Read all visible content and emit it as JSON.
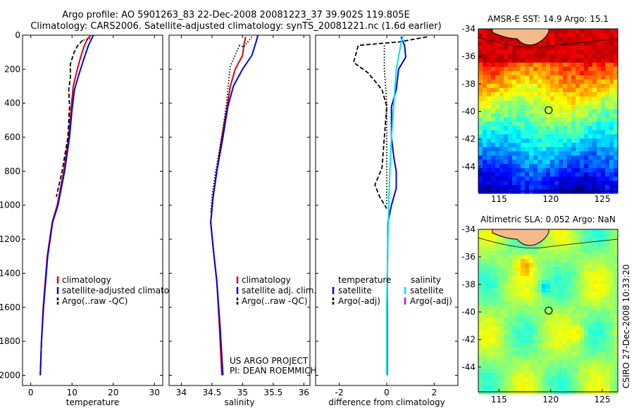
{
  "header": {
    "line1": "Argo profile: AO 5901263_83 22-Dec-2008 20081223_37 39.902S 119.805E",
    "line2": "Climatology: CARS2006. Satellite-adjusted climatology: synTS_20081221.nc (1.6d earlier)"
  },
  "side_label": "CSIRO 27-Dec-2008 10:33:20",
  "annotation": {
    "line1": "US ARGO PROJECT",
    "line2": "PI: DEAN ROEMMICH"
  },
  "colors": {
    "climatology": "#e00000",
    "satellite": "#0000ee",
    "argo": "#000000",
    "sat_salinity": "#00e5e5",
    "argo_adj_sal": "#e000e0",
    "land": "#f5b98a"
  },
  "chart_data": [
    {
      "id": "temp",
      "type": "line",
      "xlabel": "temperature",
      "xlim": [
        -2,
        32
      ],
      "xticks": [
        0,
        10,
        20,
        30
      ],
      "ylim": [
        0,
        2060
      ],
      "yticks": [
        0,
        200,
        400,
        600,
        800,
        1000,
        1200,
        1400,
        1600,
        1800,
        2000
      ],
      "legend": [
        "climatology",
        "satellite-adjusted climatology",
        "Argo(..raw -QC)"
      ],
      "series": [
        {
          "key": "climatology",
          "style": "solid",
          "points": [
            [
              14.6,
              0
            ],
            [
              13.8,
              20
            ],
            [
              13.0,
              60
            ],
            [
              12.2,
              120
            ],
            [
              11.3,
              200
            ],
            [
              10.3,
              300
            ],
            [
              9.8,
              420
            ],
            [
              9.2,
              600
            ],
            [
              8.0,
              800
            ],
            [
              6.4,
              1000
            ],
            [
              5.2,
              1100
            ],
            [
              4.0,
              1300
            ],
            [
              3.0,
              1600
            ],
            [
              2.6,
              1800
            ],
            [
              2.3,
              2000
            ]
          ]
        },
        {
          "key": "satellite",
          "style": "solid",
          "points": [
            [
              15.2,
              0
            ],
            [
              14.8,
              20
            ],
            [
              14.0,
              60
            ],
            [
              13.0,
              130
            ],
            [
              11.8,
              220
            ],
            [
              10.6,
              320
            ],
            [
              10.0,
              440
            ],
            [
              9.4,
              600
            ],
            [
              8.2,
              800
            ],
            [
              6.6,
              1000
            ],
            [
              5.3,
              1100
            ],
            [
              4.1,
              1300
            ],
            [
              3.1,
              1600
            ],
            [
              2.6,
              1800
            ],
            [
              2.3,
              2000
            ]
          ]
        },
        {
          "key": "argo",
          "style": "dash",
          "points": [
            [
              12.6,
              30
            ],
            [
              11.4,
              60
            ],
            [
              10.5,
              100
            ],
            [
              9.6,
              170
            ],
            [
              9.6,
              250
            ],
            [
              9.2,
              320
            ],
            [
              9.4,
              420
            ],
            [
              9.0,
              600
            ],
            [
              7.6,
              800
            ],
            [
              6.2,
              950
            ]
          ]
        },
        {
          "key": "argo",
          "style": "dot",
          "points": [
            [
              14.4,
              20
            ],
            [
              12.6,
              30
            ]
          ]
        }
      ]
    },
    {
      "id": "sal",
      "type": "line",
      "xlabel": "salinity",
      "xlim": [
        33.8,
        36.1
      ],
      "xticks": [
        34,
        34.5,
        35,
        35.5,
        36
      ],
      "ylim": [
        0,
        2060
      ],
      "legend": [
        "climatology",
        "satellite adj. clim.",
        "Argo(..raw -QC)"
      ],
      "series": [
        {
          "key": "climatology",
          "style": "solid",
          "points": [
            [
              35.05,
              10
            ],
            [
              35.02,
              60
            ],
            [
              35.0,
              120
            ],
            [
              34.88,
              200
            ],
            [
              34.8,
              300
            ],
            [
              34.74,
              440
            ],
            [
              34.66,
              600
            ],
            [
              34.58,
              800
            ],
            [
              34.52,
              950
            ],
            [
              34.48,
              1100
            ],
            [
              34.52,
              1250
            ],
            [
              34.58,
              1450
            ],
            [
              34.62,
              1700
            ],
            [
              34.66,
              2000
            ]
          ]
        },
        {
          "key": "satellite",
          "style": "solid",
          "points": [
            [
              35.25,
              0
            ],
            [
              35.22,
              40
            ],
            [
              35.15,
              120
            ],
            [
              35.0,
              200
            ],
            [
              34.85,
              300
            ],
            [
              34.76,
              420
            ],
            [
              34.68,
              600
            ],
            [
              34.58,
              800
            ],
            [
              34.52,
              950
            ],
            [
              34.48,
              1100
            ],
            [
              34.52,
              1250
            ],
            [
              34.58,
              1450
            ],
            [
              34.63,
              1700
            ],
            [
              34.68,
              2000
            ]
          ]
        },
        {
          "key": "argo",
          "style": "dot",
          "points": [
            [
              34.95,
              60
            ],
            [
              34.9,
              100
            ],
            [
              34.8,
              180
            ],
            [
              34.78,
              250
            ],
            [
              34.74,
              400
            ],
            [
              34.66,
              600
            ],
            [
              34.56,
              800
            ],
            [
              34.5,
              950
            ],
            [
              34.48,
              1050
            ]
          ]
        },
        {
          "key": "argo",
          "style": "dot",
          "points": [
            [
              35.15,
              10
            ],
            [
              35.02,
              70
            ],
            [
              34.95,
              60
            ]
          ]
        }
      ]
    },
    {
      "id": "diff",
      "type": "line",
      "xlabel": "difference from climatology",
      "xlim": [
        -3,
        3
      ],
      "xticks": [
        -2,
        0,
        2
      ],
      "ylim": [
        0,
        2060
      ],
      "legend_left_title": "temperature",
      "legend_right_title": "salinity",
      "legend": [
        "satellite",
        "Argo(-adj)",
        "satellite",
        "Argo(-adj)"
      ],
      "series": [
        {
          "key": "satellite",
          "style": "solid",
          "points": [
            [
              0.6,
              10
            ],
            [
              0.75,
              60
            ],
            [
              0.8,
              130
            ],
            [
              0.5,
              200
            ],
            [
              0.4,
              320
            ],
            [
              0.2,
              420
            ],
            [
              0.2,
              600
            ],
            [
              0.3,
              720
            ],
            [
              0.4,
              800
            ],
            [
              0.4,
              900
            ],
            [
              0.2,
              1000
            ],
            [
              0.05,
              1100
            ],
            [
              0.02,
              1500
            ],
            [
              0.02,
              2000
            ]
          ]
        },
        {
          "key": "argo",
          "style": "dash",
          "points": [
            [
              1.7,
              10
            ],
            [
              0.5,
              40
            ],
            [
              -1.2,
              60
            ],
            [
              -1.4,
              160
            ],
            [
              -0.8,
              220
            ],
            [
              -0.2,
              320
            ],
            [
              0.0,
              420
            ],
            [
              -0.1,
              600
            ],
            [
              -0.2,
              780
            ],
            [
              -0.5,
              880
            ],
            [
              -0.3,
              950
            ],
            [
              0.0,
              1020
            ]
          ]
        },
        {
          "key": "sat_salinity",
          "style": "solid",
          "points": [
            [
              0.7,
              0
            ],
            [
              0.6,
              50
            ],
            [
              0.4,
              200
            ],
            [
              0.3,
              400
            ],
            [
              0.2,
              600
            ],
            [
              0.1,
              900
            ],
            [
              0.05,
              1200
            ],
            [
              0.0,
              1600
            ],
            [
              0.0,
              2000
            ]
          ]
        },
        {
          "key": "argo",
          "style": "dot",
          "points": [
            [
              -0.1,
              60
            ],
            [
              -0.1,
              200
            ],
            [
              0.0,
              400
            ],
            [
              0.0,
              1000
            ]
          ]
        }
      ]
    },
    {
      "id": "sst",
      "type": "heatmap",
      "title": "AMSR-E SST: 14.9 Argo: 15.1",
      "xlim": [
        113,
        126.5
      ],
      "ylim": [
        -45.8,
        -34
      ],
      "xticks": [
        115,
        120,
        125
      ],
      "yticks": [
        -34,
        -36,
        -38,
        -40,
        -42,
        -44
      ],
      "marker": [
        119.805,
        -39.902
      ]
    },
    {
      "id": "sla",
      "type": "heatmap",
      "title": "Altimetric SLA: 0.052 Argo: NaN",
      "xlim": [
        113,
        126.5
      ],
      "ylim": [
        -45.8,
        -34
      ],
      "xticks": [
        115,
        120,
        125
      ],
      "yticks": [
        -34,
        -36,
        -38,
        -40,
        -42,
        -44
      ],
      "marker": [
        119.805,
        -39.902
      ]
    }
  ]
}
